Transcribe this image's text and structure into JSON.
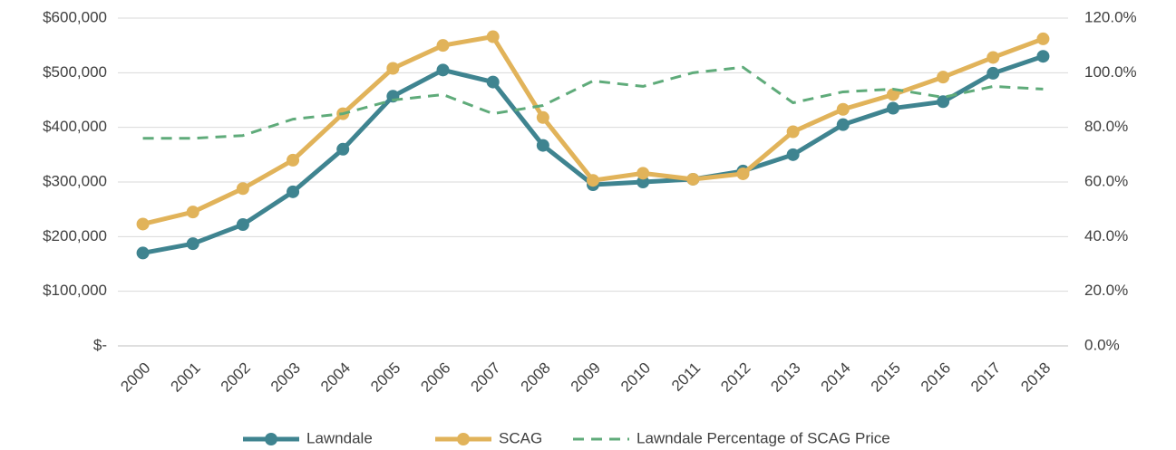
{
  "chart_data": {
    "type": "line",
    "categories": [
      "2000",
      "2001",
      "2002",
      "2003",
      "2004",
      "2005",
      "2006",
      "2007",
      "2008",
      "2009",
      "2010",
      "2011",
      "2012",
      "2013",
      "2014",
      "2015",
      "2016",
      "2017",
      "2018"
    ],
    "series": [
      {
        "name": "Lawndale",
        "color": "#3f8490",
        "values": [
          170000,
          187000,
          222000,
          282000,
          360000,
          457000,
          505000,
          483000,
          367000,
          295000,
          300000,
          305000,
          320000,
          350000,
          405000,
          435000,
          447000,
          499000,
          530000
        ]
      },
      {
        "name": "SCAG",
        "color": "#e1b35a",
        "values": [
          223000,
          245000,
          288000,
          340000,
          425000,
          508000,
          550000,
          566000,
          418000,
          303000,
          316000,
          305000,
          315000,
          392000,
          433000,
          460000,
          492000,
          528000,
          562000
        ]
      },
      {
        "name": "Lawndale Percentage of SCAG Price",
        "color": "#5fab7a",
        "axis": "y2",
        "dashed": true,
        "values": [
          76,
          76,
          77,
          83,
          85,
          90,
          92,
          85,
          88,
          97,
          95,
          100,
          102,
          89,
          93,
          94,
          91,
          95,
          94
        ]
      }
    ],
    "ylim": [
      0,
      600000
    ],
    "yticks": [
      {
        "value": 0,
        "label": "$-"
      },
      {
        "value": 100000,
        "label": "$100,000"
      },
      {
        "value": 200000,
        "label": "$200,000"
      },
      {
        "value": 300000,
        "label": "$300,000"
      },
      {
        "value": 400000,
        "label": "$400,000"
      },
      {
        "value": 500000,
        "label": "$500,000"
      },
      {
        "value": 600000,
        "label": "$600,000"
      }
    ],
    "y2lim": [
      0,
      120
    ],
    "y2ticks": [
      {
        "value": 0,
        "label": "0.0%"
      },
      {
        "value": 20,
        "label": "20.0%"
      },
      {
        "value": 40,
        "label": "40.0%"
      },
      {
        "value": 60,
        "label": "60.0%"
      },
      {
        "value": 80,
        "label": "80.0%"
      },
      {
        "value": 100,
        "label": "100.0%"
      },
      {
        "value": 120,
        "label": "120.0%"
      }
    ],
    "grid": true,
    "legend": "bottom"
  }
}
